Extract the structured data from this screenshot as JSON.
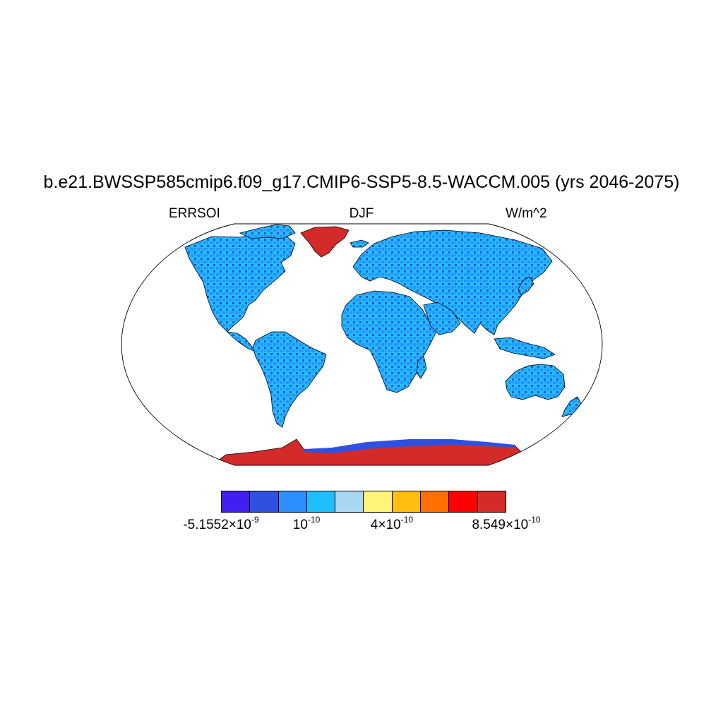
{
  "header": {
    "title": "b.e21.BWSSP585cmip6.f09_g17.CMIP6-SSP5-8.5-WACCM.005 (yrs 2046-2075)",
    "left_label": "ERRSOI",
    "center_label": "DJF",
    "right_label": "W/m^2"
  },
  "map": {
    "projection": "Robinson",
    "variable": "ERRSOI",
    "season": "DJF",
    "units": "W/m^2",
    "colors": {
      "ocean": "#ffffff",
      "land_typical": "#1ebeff",
      "land_mid": "#2b8fff",
      "land_low": "#3050e0",
      "land_lowest": "#4020f0",
      "ice_sheet": "#d42a2a"
    }
  },
  "colorbar": {
    "colors": [
      "#4020f0",
      "#3050e0",
      "#2b8fff",
      "#1ebeff",
      "#a8d8f0",
      "#fff47a",
      "#ffbe10",
      "#ff6e00",
      "#ff0000",
      "#d42a2a"
    ],
    "tick_labels": [
      {
        "mant": "-5.1552×10",
        "exp": "-9"
      },
      {
        "mant": "10",
        "exp": "-10"
      },
      {
        "mant": "4×10",
        "exp": "-10"
      },
      {
        "mant": "8.549×10",
        "exp": "-10"
      }
    ]
  }
}
